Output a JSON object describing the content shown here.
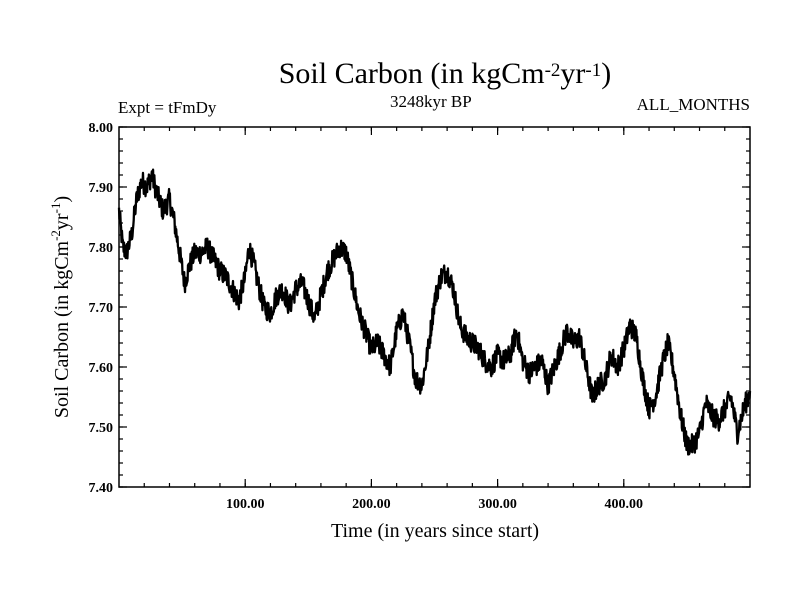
{
  "header": {
    "title_main": "Soil Carbon (in kgCm",
    "title_exp1": "-2",
    "title_mid": "yr",
    "title_exp2": "-1",
    "title_end": ")",
    "experiment": "Expt = tFmDy",
    "subtitle": "3248kyr BP",
    "months": "ALL_MONTHS"
  },
  "chart_data": {
    "type": "line",
    "title": "Soil Carbon (in kgCm-2yr-1)",
    "xlabel": "Time (in years since start)",
    "ylabel_main": "Soil Carbon (in kgCm",
    "ylabel_exp1": "-2",
    "ylabel_mid": "yr",
    "ylabel_exp2": "-1",
    "ylabel_end": ")",
    "xlim": [
      0,
      500
    ],
    "ylim": [
      7.4,
      8.0
    ],
    "x_ticks": [
      100,
      200,
      300,
      400
    ],
    "x_tick_labels": [
      "100.00",
      "200.00",
      "300.00",
      "400.00"
    ],
    "y_ticks": [
      7.4,
      7.5,
      7.6,
      7.7,
      7.8,
      7.9,
      8.0
    ],
    "y_tick_labels": [
      "7.40",
      "7.50",
      "7.60",
      "7.70",
      "7.80",
      "7.90",
      "8.00"
    ],
    "series": [
      {
        "name": "Soil Carbon",
        "color": "#000000",
        "x": [
          0,
          3,
          6,
          10,
          14,
          18,
          22,
          26,
          30,
          35,
          40,
          44,
          48,
          52,
          56,
          60,
          65,
          70,
          75,
          80,
          85,
          90,
          95,
          100,
          103,
          107,
          110,
          115,
          120,
          125,
          130,
          135,
          140,
          145,
          150,
          155,
          160,
          165,
          170,
          175,
          180,
          185,
          190,
          195,
          200,
          205,
          210,
          215,
          220,
          225,
          230,
          235,
          240,
          245,
          250,
          255,
          260,
          265,
          270,
          275,
          280,
          285,
          290,
          295,
          300,
          305,
          310,
          315,
          320,
          325,
          330,
          335,
          340,
          345,
          350,
          355,
          360,
          365,
          370,
          375,
          380,
          385,
          390,
          395,
          400,
          405,
          410,
          415,
          420,
          425,
          430,
          435,
          440,
          445,
          450,
          455,
          460,
          465,
          470,
          475,
          480,
          485,
          490,
          495,
          500
        ],
        "values": [
          7.86,
          7.8,
          7.79,
          7.82,
          7.88,
          7.91,
          7.9,
          7.92,
          7.89,
          7.86,
          7.88,
          7.84,
          7.79,
          7.74,
          7.77,
          7.79,
          7.79,
          7.8,
          7.78,
          7.76,
          7.75,
          7.73,
          7.71,
          7.75,
          7.8,
          7.77,
          7.74,
          7.7,
          7.69,
          7.72,
          7.73,
          7.7,
          7.73,
          7.74,
          7.71,
          7.68,
          7.72,
          7.76,
          7.78,
          7.8,
          7.79,
          7.74,
          7.69,
          7.66,
          7.63,
          7.64,
          7.62,
          7.6,
          7.66,
          7.69,
          7.64,
          7.58,
          7.57,
          7.63,
          7.71,
          7.75,
          7.76,
          7.73,
          7.67,
          7.65,
          7.64,
          7.63,
          7.61,
          7.6,
          7.62,
          7.61,
          7.62,
          7.66,
          7.61,
          7.59,
          7.6,
          7.61,
          7.57,
          7.6,
          7.63,
          7.66,
          7.64,
          7.65,
          7.6,
          7.55,
          7.57,
          7.58,
          7.62,
          7.6,
          7.63,
          7.67,
          7.65,
          7.58,
          7.53,
          7.55,
          7.6,
          7.64,
          7.59,
          7.52,
          7.47,
          7.47,
          7.49,
          7.54,
          7.52,
          7.51,
          7.53,
          7.55,
          7.49,
          7.53,
          7.56
        ],
        "noise_amplitude": 0.018
      }
    ]
  }
}
